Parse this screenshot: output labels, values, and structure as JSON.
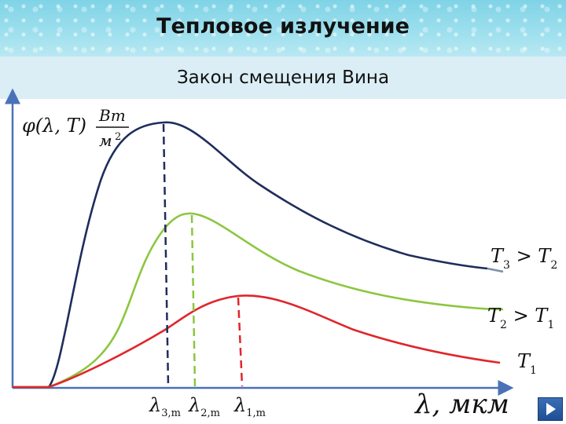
{
  "header": {
    "title": "Тепловое излучение",
    "subtitle": "Закон смещения Вина"
  },
  "chart_data": {
    "type": "line",
    "ylabel": "φ(λ, T) Вт/м²",
    "xlabel": "λ, мкм",
    "x_ticks": [
      "λ3,m",
      "λ2,m",
      "λ1,m"
    ],
    "grid": false,
    "series": [
      {
        "name": "T3 > T2",
        "color": "#1f2d5c",
        "peak_tick": "λ3,m"
      },
      {
        "name": "T2 > T1",
        "color": "#8cc63f",
        "peak_tick": "λ2,m"
      },
      {
        "name": "T1",
        "color": "#e0262b",
        "peak_tick": "λ1,m"
      }
    ]
  },
  "nav": {
    "next_icon": "play-right-icon"
  }
}
